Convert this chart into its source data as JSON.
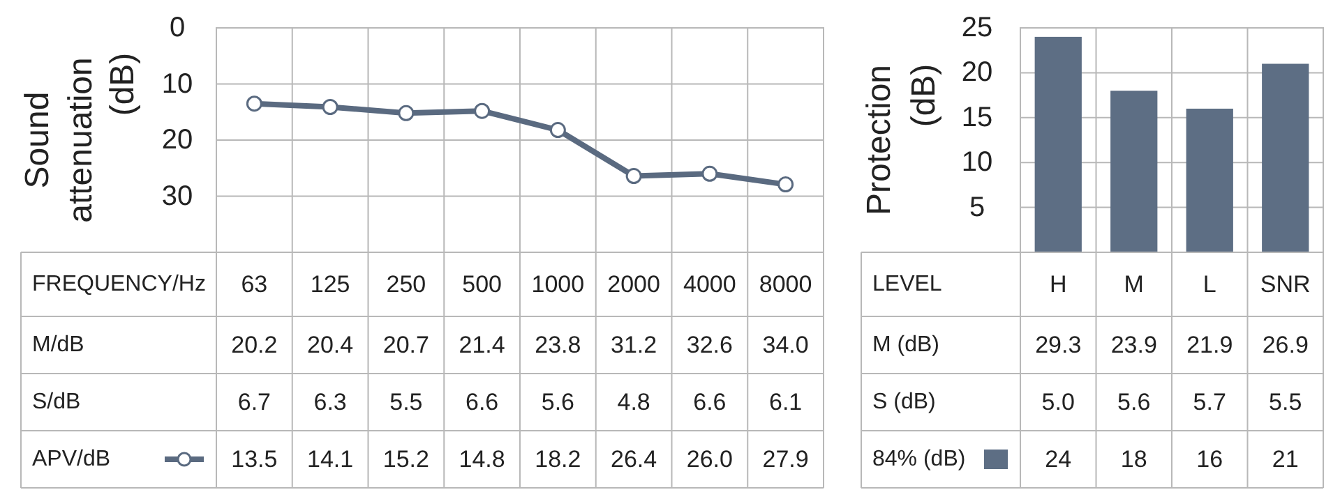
{
  "chart_data": [
    {
      "type": "line",
      "ylabel": "Sound attenuation (dB)",
      "xlabel": "FREQUENCY/Hz",
      "categories": [
        "63",
        "125",
        "250",
        "500",
        "1000",
        "2000",
        "4000",
        "8000"
      ],
      "ylim": [
        40,
        0
      ],
      "yticks": [
        0,
        10,
        20,
        30
      ],
      "grid": true,
      "marker": "circle",
      "legend": "bottom",
      "annotations": [
        "M/dB",
        "20.2",
        "20.4",
        "20.7",
        "21.4",
        "23.8",
        "31.2",
        "32.6",
        "34.0",
        "S/dB",
        "6.7",
        "6.3",
        "5.5",
        "6.6",
        "5.6",
        "4.8",
        "6.6",
        "6.1"
      ],
      "series": [
        {
          "name": "APV/dB",
          "color": "#5a6a80",
          "values": [
            13.5,
            14.1,
            15.2,
            14.8,
            18.2,
            26.4,
            26.0,
            27.9
          ],
          "value_labels": [
            "13.5",
            "14.1",
            "15.2",
            "14.8",
            "18.2",
            "26.4",
            "26.0",
            "27.9"
          ]
        }
      ]
    },
    {
      "type": "bar",
      "ylabel": "Protection (dB)",
      "xlabel": "LEVEL",
      "categories": [
        "H",
        "M",
        "L",
        "SNR"
      ],
      "ylim": [
        0,
        25
      ],
      "yticks": [
        5,
        10,
        15,
        20,
        25
      ],
      "grid": true,
      "legend": "bottom",
      "annotations": [
        "M (dB)",
        "29.3",
        "23.9",
        "21.9",
        "26.9",
        "S (dB)",
        "5.0",
        "5.6",
        "5.7",
        "5.5"
      ],
      "series": [
        {
          "name": "84% (dB)",
          "color": "#5d6e84",
          "values": [
            24,
            18,
            16,
            21
          ],
          "value_labels": [
            "24",
            "18",
            "16",
            "21"
          ]
        }
      ]
    }
  ]
}
